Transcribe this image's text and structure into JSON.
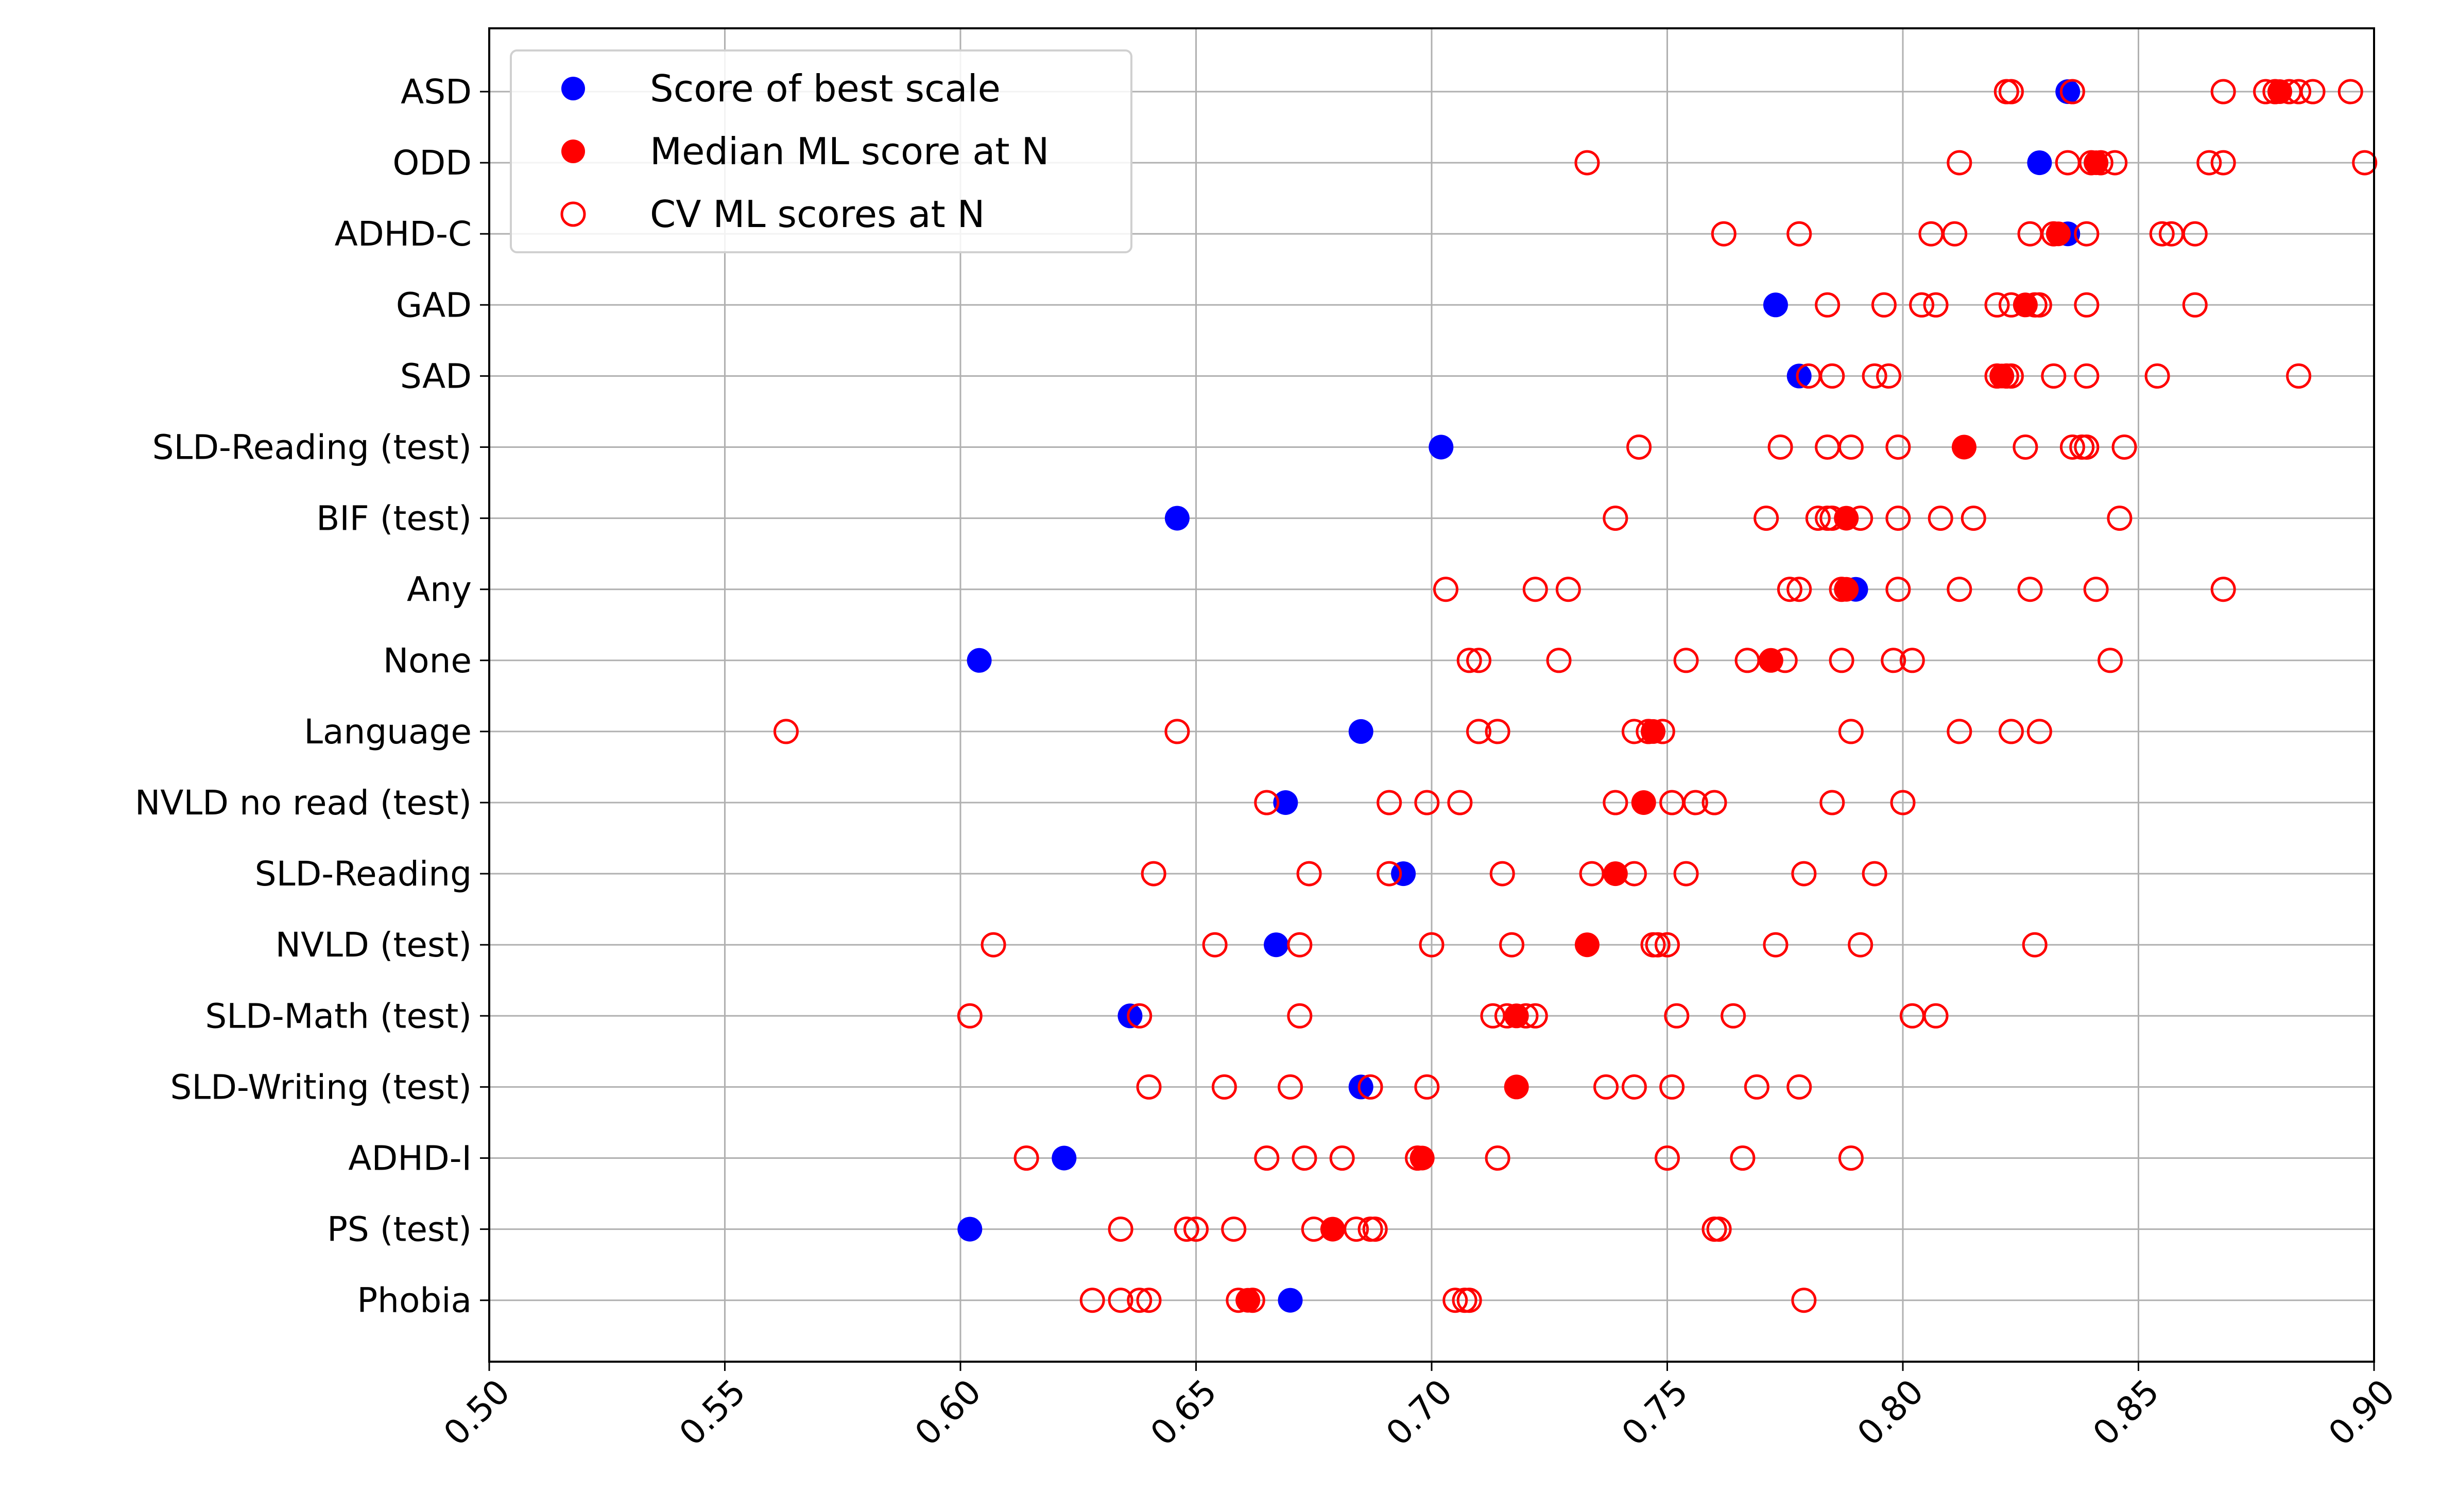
{
  "chart_data": {
    "type": "scatter",
    "orientation": "horizontal",
    "title": "",
    "xlabel": "",
    "ylabel": "",
    "xlim": [
      0.5,
      0.9
    ],
    "x_ticks": [
      "0.50",
      "0.55",
      "0.60",
      "0.65",
      "0.70",
      "0.75",
      "0.80",
      "0.85",
      "0.90"
    ],
    "grid": true,
    "legend_position": "upper-left",
    "categories": [
      "ASD",
      "ODD",
      "ADHD-C",
      "GAD",
      "SAD",
      "SLD-Reading (test)",
      "BIF (test)",
      "Any",
      "None",
      "Language",
      "NVLD no read (test)",
      "SLD-Reading",
      "NVLD (test)",
      "SLD-Math (test)",
      "SLD-Writing (test)",
      "ADHD-I",
      "PS (test)",
      "Phobia"
    ],
    "series": [
      {
        "name": "Score of best scale",
        "marker": "filled",
        "color": "#0000ff",
        "values": [
          0.835,
          0.829,
          0.835,
          0.773,
          0.778,
          0.702,
          0.646,
          0.79,
          0.604,
          0.685,
          0.669,
          0.694,
          0.667,
          0.636,
          0.685,
          0.622,
          0.602,
          0.67
        ]
      },
      {
        "name": "Median ML score at N",
        "marker": "filled",
        "color": "#ff0000",
        "values": [
          0.88,
          0.841,
          0.833,
          0.826,
          0.821,
          0.813,
          0.788,
          0.788,
          0.772,
          0.747,
          0.745,
          0.739,
          0.733,
          0.718,
          0.718,
          0.698,
          0.679,
          0.661
        ]
      },
      {
        "name": "CV ML scores at N",
        "marker": "hollow",
        "color": "#ff0000",
        "values": [
          [
            0.822,
            0.823,
            0.836,
            0.868,
            0.877,
            0.879,
            0.882,
            0.884,
            0.887,
            0.895
          ],
          [
            0.733,
            0.812,
            0.835,
            0.84,
            0.842,
            0.845,
            0.865,
            0.868,
            0.898
          ],
          [
            0.762,
            0.778,
            0.806,
            0.811,
            0.827,
            0.832,
            0.839,
            0.855,
            0.857,
            0.862
          ],
          [
            0.784,
            0.796,
            0.804,
            0.807,
            0.82,
            0.823,
            0.828,
            0.829,
            0.839,
            0.862
          ],
          [
            0.78,
            0.785,
            0.794,
            0.797,
            0.82,
            0.822,
            0.823,
            0.832,
            0.839,
            0.854,
            0.884
          ],
          [
            0.744,
            0.774,
            0.784,
            0.789,
            0.799,
            0.826,
            0.836,
            0.838,
            0.839,
            0.847
          ],
          [
            0.739,
            0.771,
            0.782,
            0.784,
            0.785,
            0.791,
            0.799,
            0.808,
            0.815,
            0.846
          ],
          [
            0.703,
            0.722,
            0.729,
            0.776,
            0.778,
            0.787,
            0.799,
            0.812,
            0.827,
            0.841,
            0.868
          ],
          [
            0.708,
            0.71,
            0.727,
            0.754,
            0.767,
            0.775,
            0.787,
            0.798,
            0.802,
            0.844
          ],
          [
            0.563,
            0.646,
            0.71,
            0.714,
            0.743,
            0.746,
            0.749,
            0.789,
            0.812,
            0.823,
            0.829
          ],
          [
            0.665,
            0.691,
            0.699,
            0.706,
            0.739,
            0.751,
            0.756,
            0.76,
            0.785,
            0.8
          ],
          [
            0.641,
            0.674,
            0.691,
            0.715,
            0.734,
            0.743,
            0.754,
            0.779,
            0.794
          ],
          [
            0.607,
            0.654,
            0.672,
            0.7,
            0.717,
            0.747,
            0.748,
            0.75,
            0.773,
            0.791,
            0.828
          ],
          [
            0.602,
            0.638,
            0.672,
            0.713,
            0.716,
            0.72,
            0.722,
            0.752,
            0.764,
            0.802,
            0.807
          ],
          [
            0.64,
            0.656,
            0.67,
            0.687,
            0.699,
            0.737,
            0.743,
            0.751,
            0.769,
            0.778
          ],
          [
            0.614,
            0.665,
            0.673,
            0.681,
            0.697,
            0.714,
            0.75,
            0.766,
            0.789
          ],
          [
            0.634,
            0.648,
            0.65,
            0.658,
            0.675,
            0.684,
            0.687,
            0.688,
            0.76,
            0.761
          ],
          [
            0.628,
            0.634,
            0.638,
            0.64,
            0.659,
            0.662,
            0.705,
            0.707,
            0.708,
            0.779
          ]
        ]
      }
    ]
  },
  "colors": {
    "best_scale": "#0000ff",
    "median_ml": "#ff0000",
    "cv_ml": "#ff0000",
    "grid": "#b0b0b0",
    "axes": "#000000"
  }
}
